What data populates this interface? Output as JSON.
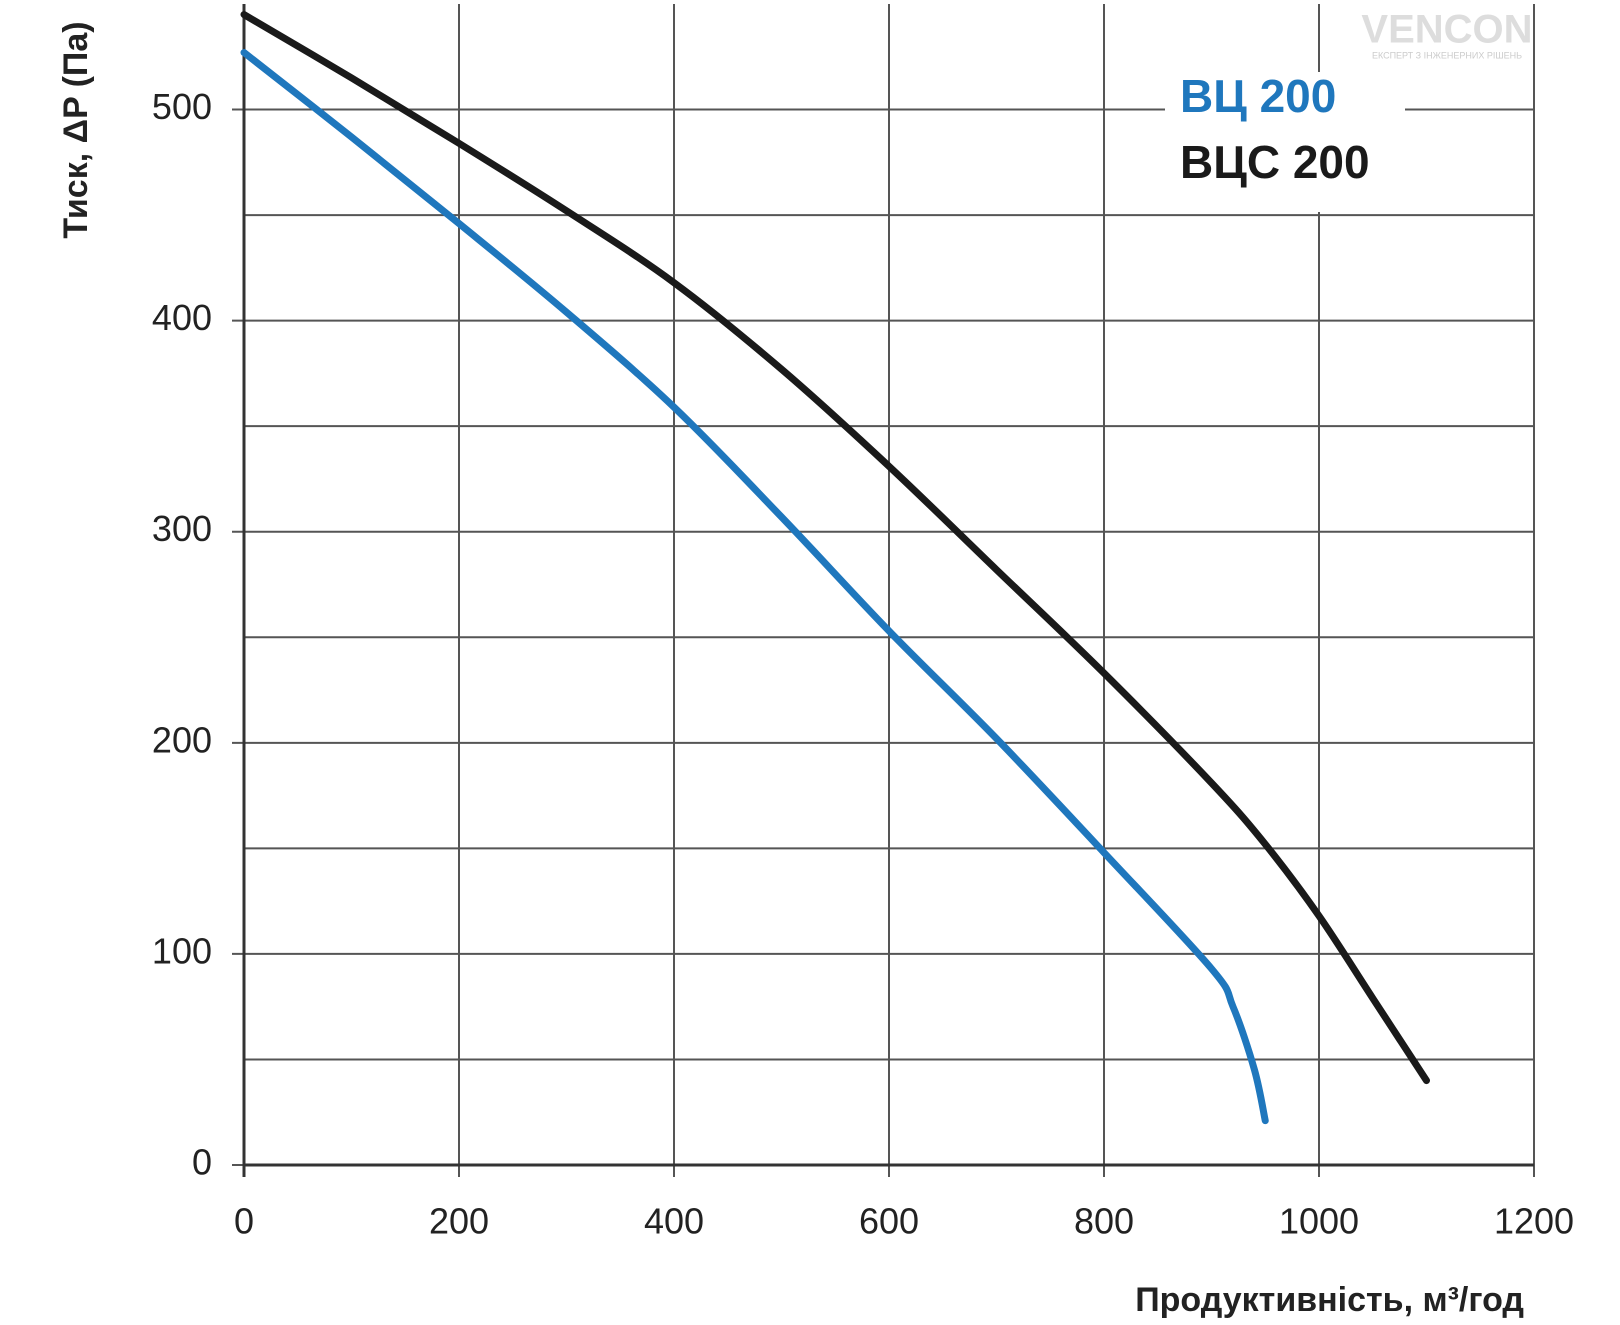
{
  "chart_data": {
    "type": "line",
    "x_label": "Продуктивність, м³/год",
    "y_label": "Тиск, ΔP (Па)",
    "watermark": "VENCON",
    "watermark_subtitle": "ЕКСПЕРТ З ІНЖЕНЕРНИХ РІШЕНЬ",
    "xlim": [
      0,
      1200
    ],
    "xticks": [
      0,
      200,
      400,
      600,
      800,
      1000,
      1200
    ],
    "ylim": [
      0,
      550
    ],
    "yticks": [
      0,
      100,
      200,
      300,
      400,
      500
    ],
    "y_minor_gridlines": [
      50,
      150,
      250,
      350,
      450
    ],
    "grid": true,
    "legend": "upper right",
    "series": [
      {
        "name": "ВЦ 200",
        "color": "#1f77bd",
        "x": [
          0,
          100,
          200,
          300,
          400,
          500,
          600,
          700,
          800,
          900,
          920,
          940,
          950
        ],
        "values": [
          527,
          487,
          446,
          404,
          359,
          307,
          253,
          202,
          148,
          93,
          75,
          45,
          21
        ]
      },
      {
        "name": "ВЦС 200",
        "color": "#1a1a1a",
        "x": [
          0,
          100,
          200,
          300,
          400,
          500,
          600,
          700,
          800,
          900,
          950,
          1000,
          1050,
          1100
        ],
        "values": [
          545,
          515,
          484,
          452,
          418,
          377,
          331,
          282,
          233,
          181,
          152,
          118,
          79,
          40
        ]
      }
    ]
  }
}
